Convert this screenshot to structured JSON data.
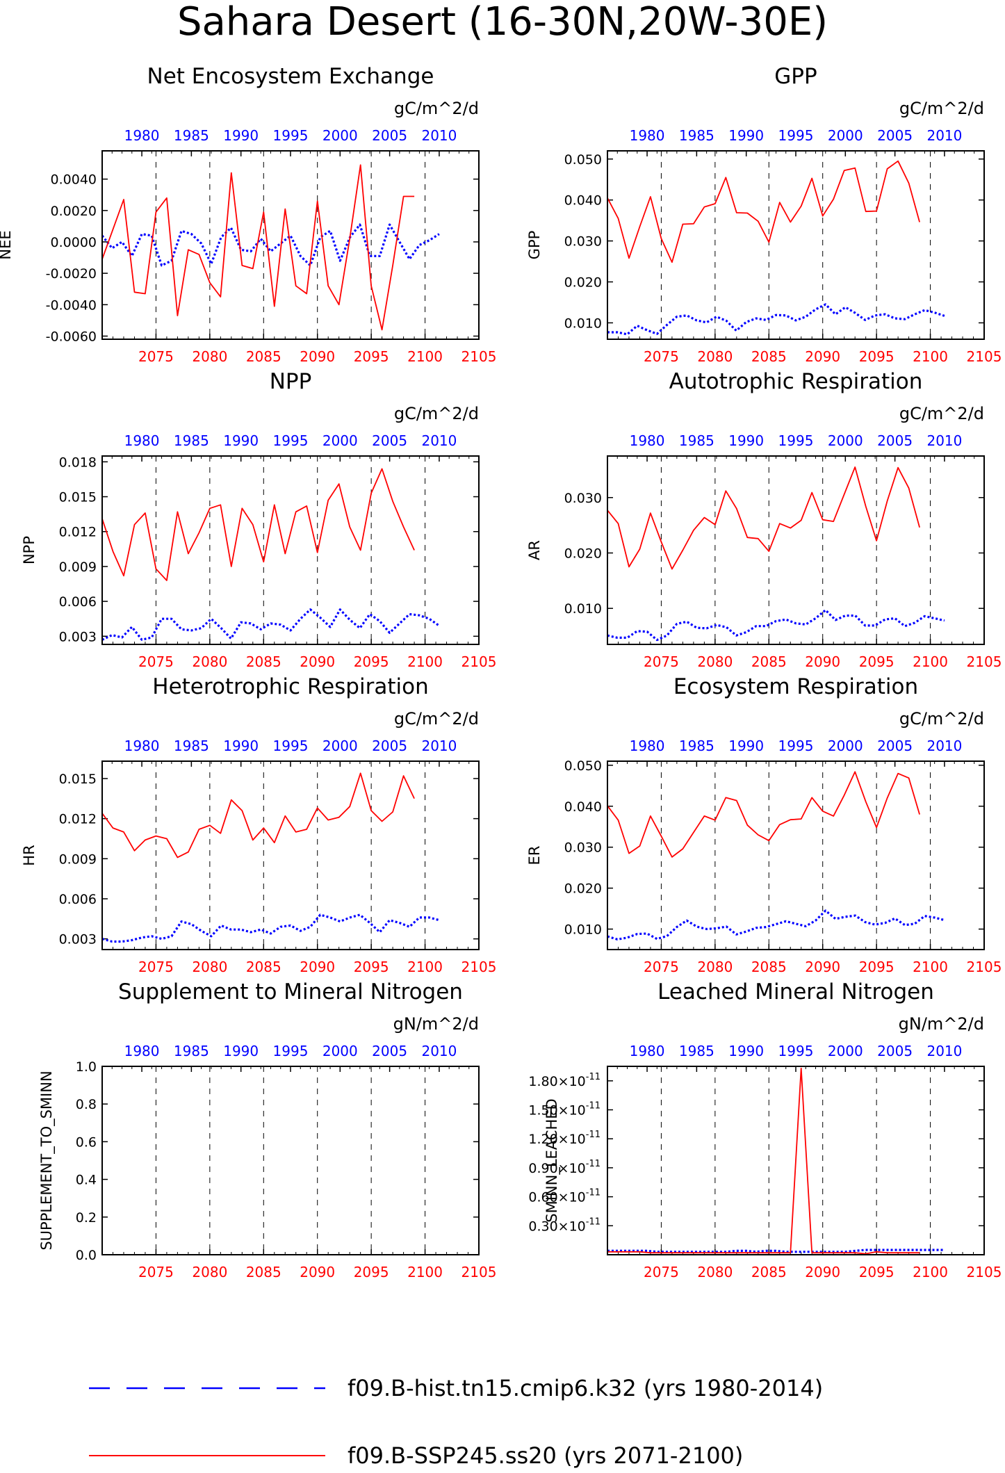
{
  "figure_title": "Sahara Desert (16-30N,20W-30E)",
  "colors": {
    "hist": "#0000ff",
    "ssp": "#ff0000",
    "axis": "#000000",
    "grid": "#000000"
  },
  "legend": {
    "hist_label": "f09.B-hist.tn15.cmip6.k32 (yrs 1980-2014)",
    "ssp_label": "f09.B-SSP245.ss20 (yrs 2071-2100)"
  },
  "chart_data": [
    {
      "type": "line",
      "id": "nee",
      "title": "Net Encosystem Exchange",
      "units": "gC/m^2/d",
      "ylabel": "NEE",
      "ylim": [
        -0.0062,
        0.0058
      ],
      "yticks": [
        -0.006,
        -0.004,
        -0.002,
        0.0,
        0.002,
        0.004
      ],
      "ytick_labels": [
        "-0.0060",
        "-0.0040",
        "-0.0020",
        "0.0000",
        "0.0020",
        "0.0040"
      ],
      "top_axis": {
        "range": [
          1976,
          2014
        ],
        "ticks": [
          1980,
          1985,
          1990,
          1995,
          2000,
          2005,
          2010
        ]
      },
      "bottom_axis": {
        "range": [
          2070,
          2105
        ],
        "ticks": [
          2075,
          2080,
          2085,
          2090,
          2095,
          2100,
          2105
        ]
      },
      "series": [
        {
          "id": "hist",
          "x_start": 1976,
          "values": [
            0.0004,
            -0.0004,
            0.0,
            -0.0009,
            0.0005,
            0.0004,
            -0.0015,
            -0.0012,
            0.0007,
            0.0005,
            -0.0001,
            -0.0014,
            0.0003,
            0.0009,
            -0.0005,
            -0.0006,
            0.0002,
            -0.0006,
            -0.0001,
            0.0004,
            -0.0009,
            -0.0015,
            0.0003,
            0.0007,
            -0.0012,
            0.0003,
            0.0011,
            -0.0009,
            -0.0009,
            0.0011,
            0.0,
            -0.0011,
            -0.0002,
            0.0001,
            0.0005
          ]
        },
        {
          "id": "ssp",
          "x_start": 2070,
          "values": [
            -0.0011,
            0.0008,
            0.0027,
            -0.0032,
            -0.0033,
            0.0019,
            0.0028,
            -0.0047,
            -0.0005,
            -0.0008,
            -0.0026,
            -0.0035,
            0.0044,
            -0.0015,
            -0.0017,
            0.0019,
            -0.0041,
            0.0021,
            -0.0028,
            -0.0033,
            0.0026,
            -0.0028,
            -0.004,
            0.0002,
            0.0049,
            -0.0028,
            -0.0056,
            -0.0015,
            0.0029,
            0.0029
          ]
        }
      ]
    },
    {
      "type": "line",
      "id": "gpp",
      "title": "GPP",
      "units": "gC/m^2/d",
      "ylabel": "GPP",
      "ylim": [
        0.006,
        0.052
      ],
      "yticks": [
        0.01,
        0.02,
        0.03,
        0.04,
        0.05
      ],
      "ytick_labels": [
        "0.010",
        "0.020",
        "0.030",
        "0.040",
        "0.050"
      ],
      "top_axis": {
        "range": [
          1976,
          2014
        ],
        "ticks": [
          1980,
          1985,
          1990,
          1995,
          2000,
          2005,
          2010
        ]
      },
      "bottom_axis": {
        "range": [
          2070,
          2105
        ],
        "ticks": [
          2075,
          2080,
          2085,
          2090,
          2095,
          2100,
          2105
        ]
      },
      "series": [
        {
          "id": "hist",
          "x_start": 1976,
          "values": [
            0.0077,
            0.0077,
            0.0072,
            0.0093,
            0.0082,
            0.0073,
            0.0095,
            0.0115,
            0.0118,
            0.0106,
            0.0101,
            0.0115,
            0.0105,
            0.0081,
            0.0102,
            0.0111,
            0.0107,
            0.0119,
            0.0118,
            0.0106,
            0.0115,
            0.0133,
            0.0145,
            0.0121,
            0.0138,
            0.0124,
            0.0107,
            0.0118,
            0.0121,
            0.0111,
            0.0109,
            0.0121,
            0.0131,
            0.0125,
            0.0117
          ]
        },
        {
          "id": "ssp",
          "x_start": 2070,
          "values": [
            0.0405,
            0.0355,
            0.0258,
            0.0335,
            0.0408,
            0.0306,
            0.0248,
            0.0341,
            0.0342,
            0.0383,
            0.0391,
            0.0455,
            0.0369,
            0.0368,
            0.0348,
            0.0297,
            0.0394,
            0.0346,
            0.0385,
            0.0453,
            0.0361,
            0.0402,
            0.0472,
            0.0478,
            0.0372,
            0.0373,
            0.0476,
            0.0495,
            0.0441,
            0.0346
          ]
        }
      ]
    },
    {
      "type": "line",
      "id": "npp",
      "title": "NPP",
      "units": "gC/m^2/d",
      "ylabel": "NPP",
      "ylim": [
        0.0023,
        0.0185
      ],
      "yticks": [
        0.003,
        0.006,
        0.009,
        0.012,
        0.015,
        0.018
      ],
      "ytick_labels": [
        "0.003",
        "0.006",
        "0.009",
        "0.012",
        "0.015",
        "0.018"
      ],
      "top_axis": {
        "range": [
          1976,
          2014
        ],
        "ticks": [
          1980,
          1985,
          1990,
          1995,
          2000,
          2005,
          2010
        ]
      },
      "bottom_axis": {
        "range": [
          2070,
          2105
        ],
        "ticks": [
          2075,
          2080,
          2085,
          2090,
          2095,
          2100,
          2105
        ]
      },
      "series": [
        {
          "id": "hist",
          "x_start": 1976,
          "values": [
            0.0027,
            0.0031,
            0.0029,
            0.0038,
            0.0027,
            0.0029,
            0.0045,
            0.0045,
            0.0036,
            0.0035,
            0.0037,
            0.0045,
            0.0037,
            0.0028,
            0.0042,
            0.0041,
            0.0036,
            0.0041,
            0.004,
            0.0035,
            0.0045,
            0.0053,
            0.0046,
            0.0038,
            0.0053,
            0.0044,
            0.0037,
            0.0049,
            0.0043,
            0.0033,
            0.0041,
            0.0049,
            0.0048,
            0.0045,
            0.0039
          ]
        },
        {
          "id": "ssp",
          "x_start": 2070,
          "values": [
            0.0131,
            0.0103,
            0.0082,
            0.0126,
            0.0136,
            0.0088,
            0.0078,
            0.0137,
            0.0101,
            0.0119,
            0.014,
            0.0143,
            0.009,
            0.014,
            0.0126,
            0.0094,
            0.0143,
            0.0101,
            0.0137,
            0.0142,
            0.0102,
            0.0147,
            0.0161,
            0.0124,
            0.0104,
            0.0153,
            0.0174,
            0.0146,
            0.0124,
            0.0104
          ]
        }
      ]
    },
    {
      "type": "line",
      "id": "ar",
      "title": "Autotrophic Respiration",
      "units": "gC/m^2/d",
      "ylabel": "AR",
      "ylim": [
        0.0035,
        0.0375
      ],
      "yticks": [
        0.01,
        0.02,
        0.03
      ],
      "ytick_labels": [
        "0.010",
        "0.020",
        "0.030"
      ],
      "top_axis": {
        "range": [
          1976,
          2014
        ],
        "ticks": [
          1980,
          1985,
          1990,
          1995,
          2000,
          2005,
          2010
        ]
      },
      "bottom_axis": {
        "range": [
          2070,
          2105
        ],
        "ticks": [
          2075,
          2080,
          2085,
          2090,
          2095,
          2100,
          2105
        ]
      },
      "series": [
        {
          "id": "hist",
          "x_start": 1976,
          "values": [
            0.0051,
            0.0047,
            0.0047,
            0.0059,
            0.0058,
            0.0043,
            0.0051,
            0.0072,
            0.0076,
            0.0065,
            0.0064,
            0.007,
            0.0066,
            0.0051,
            0.0057,
            0.0068,
            0.0068,
            0.0077,
            0.008,
            0.0073,
            0.0071,
            0.0082,
            0.0097,
            0.0079,
            0.0087,
            0.0087,
            0.0069,
            0.0069,
            0.008,
            0.0082,
            0.0068,
            0.0074,
            0.0086,
            0.0082,
            0.0078
          ]
        },
        {
          "id": "ssp",
          "x_start": 2070,
          "values": [
            0.0277,
            0.0253,
            0.0175,
            0.0207,
            0.0272,
            0.022,
            0.0171,
            0.0205,
            0.0241,
            0.0264,
            0.0251,
            0.0312,
            0.028,
            0.0228,
            0.0226,
            0.0203,
            0.0253,
            0.0245,
            0.0259,
            0.0309,
            0.026,
            0.0257,
            0.0306,
            0.0355,
            0.0284,
            0.0222,
            0.0294,
            0.0354,
            0.0317,
            0.0246
          ]
        }
      ]
    },
    {
      "type": "line",
      "id": "hr",
      "title": "Heterotrophic Respiration",
      "units": "gC/m^2/d",
      "ylabel": "HR",
      "ylim": [
        0.0022,
        0.0163
      ],
      "yticks": [
        0.003,
        0.006,
        0.009,
        0.012,
        0.015
      ],
      "ytick_labels": [
        "0.003",
        "0.006",
        "0.009",
        "0.012",
        "0.015"
      ],
      "top_axis": {
        "range": [
          1976,
          2014
        ],
        "ticks": [
          1980,
          1985,
          1990,
          1995,
          2000,
          2005,
          2010
        ]
      },
      "bottom_axis": {
        "range": [
          2070,
          2105
        ],
        "ticks": [
          2075,
          2080,
          2085,
          2090,
          2095,
          2100,
          2105
        ]
      },
      "series": [
        {
          "id": "hist",
          "x_start": 1976,
          "values": [
            0.003,
            0.0028,
            0.0028,
            0.0029,
            0.0031,
            0.0032,
            0.003,
            0.0032,
            0.0043,
            0.0041,
            0.0036,
            0.0032,
            0.004,
            0.0037,
            0.0037,
            0.0035,
            0.0037,
            0.0034,
            0.0039,
            0.004,
            0.0036,
            0.0039,
            0.0048,
            0.0046,
            0.0043,
            0.0046,
            0.0048,
            0.0042,
            0.0035,
            0.0044,
            0.0042,
            0.0039,
            0.0046,
            0.0046,
            0.0044
          ]
        },
        {
          "id": "ssp",
          "x_start": 2070,
          "values": [
            0.0124,
            0.0113,
            0.011,
            0.0096,
            0.0104,
            0.0107,
            0.0105,
            0.0091,
            0.0095,
            0.0112,
            0.0115,
            0.0109,
            0.0134,
            0.0126,
            0.0104,
            0.0113,
            0.0102,
            0.0122,
            0.011,
            0.0112,
            0.0128,
            0.0119,
            0.0121,
            0.0129,
            0.0154,
            0.0126,
            0.0118,
            0.0125,
            0.0152,
            0.0135
          ]
        }
      ]
    },
    {
      "type": "line",
      "id": "er",
      "title": "Ecosystem Respiration",
      "units": "gC/m^2/d",
      "ylabel": "ER",
      "ylim": [
        0.005,
        0.051
      ],
      "yticks": [
        0.01,
        0.02,
        0.03,
        0.04,
        0.05
      ],
      "ytick_labels": [
        "0.010",
        "0.020",
        "0.030",
        "0.040",
        "0.050"
      ],
      "top_axis": {
        "range": [
          1976,
          2014
        ],
        "ticks": [
          1980,
          1985,
          1990,
          1995,
          2000,
          2005,
          2010
        ]
      },
      "bottom_axis": {
        "range": [
          2070,
          2105
        ],
        "ticks": [
          2075,
          2080,
          2085,
          2090,
          2095,
          2100,
          2105
        ]
      },
      "series": [
        {
          "id": "hist",
          "x_start": 1976,
          "values": [
            0.0082,
            0.0075,
            0.0079,
            0.0088,
            0.0089,
            0.0076,
            0.0083,
            0.0105,
            0.0121,
            0.0106,
            0.01,
            0.0102,
            0.0106,
            0.0087,
            0.0094,
            0.0103,
            0.0105,
            0.0112,
            0.0119,
            0.0113,
            0.0107,
            0.0121,
            0.0145,
            0.0125,
            0.013,
            0.0133,
            0.0117,
            0.0111,
            0.0115,
            0.0126,
            0.011,
            0.0113,
            0.0132,
            0.0128,
            0.0122
          ]
        },
        {
          "id": "ssp",
          "x_start": 2070,
          "values": [
            0.0401,
            0.0366,
            0.0285,
            0.0303,
            0.0376,
            0.0327,
            0.0276,
            0.0296,
            0.0336,
            0.0376,
            0.0366,
            0.0421,
            0.0414,
            0.0354,
            0.033,
            0.0316,
            0.0355,
            0.0367,
            0.0369,
            0.0421,
            0.0388,
            0.0376,
            0.0427,
            0.0484,
            0.0411,
            0.0348,
            0.042,
            0.048,
            0.0469,
            0.038
          ]
        }
      ]
    },
    {
      "type": "line",
      "id": "supplement",
      "title": "Supplement to Mineral Nitrogen",
      "units": "gN/m^2/d",
      "ylabel": "SUPPLEMENT_TO_SMINN",
      "ylim": [
        0,
        1.0
      ],
      "yticks": [
        0.0,
        0.2,
        0.4,
        0.6,
        0.8,
        1.0
      ],
      "ytick_labels": [
        "0.0",
        "0.2",
        "0.4",
        "0.6",
        "0.8",
        "1.0"
      ],
      "top_axis": {
        "range": [
          1976,
          2014
        ],
        "ticks": [
          1980,
          1985,
          1990,
          1995,
          2000,
          2005,
          2010
        ]
      },
      "bottom_axis": {
        "range": [
          2070,
          2105
        ],
        "ticks": [
          2075,
          2080,
          2085,
          2090,
          2095,
          2100,
          2105
        ]
      },
      "series": []
    },
    {
      "type": "line",
      "id": "leached",
      "title": "Leached Mineral Nitrogen",
      "units": "gN/m^2/d",
      "ylabel": "SMINN_LEACHED",
      "ylim": [
        0,
        1.95e-11
      ],
      "yticks": [
        3e-12,
        6e-12,
        9e-12,
        1.2e-11,
        1.5e-11,
        1.8e-11
      ],
      "ytick_labels": [
        "0.30",
        "0.60",
        "0.90",
        "1.20",
        "1.50",
        "1.80"
      ],
      "ytick_exponent": "-11",
      "top_axis": {
        "range": [
          1976,
          2014
        ],
        "ticks": [
          1980,
          1985,
          1990,
          1995,
          2000,
          2005,
          2010
        ]
      },
      "bottom_axis": {
        "range": [
          2070,
          2105
        ],
        "ticks": [
          2075,
          2080,
          2085,
          2090,
          2095,
          2100,
          2105
        ]
      },
      "series": [
        {
          "id": "hist",
          "x_start": 1976,
          "values": [
            4e-13,
            4e-13,
            4e-13,
            4e-13,
            4e-13,
            3e-13,
            3e-13,
            3e-13,
            3e-13,
            3e-13,
            3e-13,
            3e-13,
            3e-13,
            4e-13,
            4e-13,
            3e-13,
            4e-13,
            4e-13,
            3e-13,
            3e-13,
            3e-13,
            3e-13,
            3e-13,
            3e-13,
            3e-13,
            4e-13,
            5e-13,
            5e-13,
            5e-13,
            5e-13,
            5e-13,
            5e-13,
            5e-13,
            5e-13,
            5e-13
          ]
        },
        {
          "id": "ssp",
          "x_start": 2070,
          "values": [
            3e-13,
            3e-13,
            3e-13,
            3e-13,
            2e-13,
            2e-13,
            2e-13,
            2e-13,
            2e-13,
            2e-13,
            2e-13,
            2e-13,
            2e-13,
            2e-13,
            2e-13,
            2e-13,
            2e-13,
            2e-13,
            1.93e-11,
            2e-13,
            2e-13,
            2e-13,
            2e-13,
            2e-13,
            1e-13,
            3e-13,
            2e-13,
            2e-13,
            2e-13,
            2e-13
          ]
        }
      ]
    }
  ]
}
